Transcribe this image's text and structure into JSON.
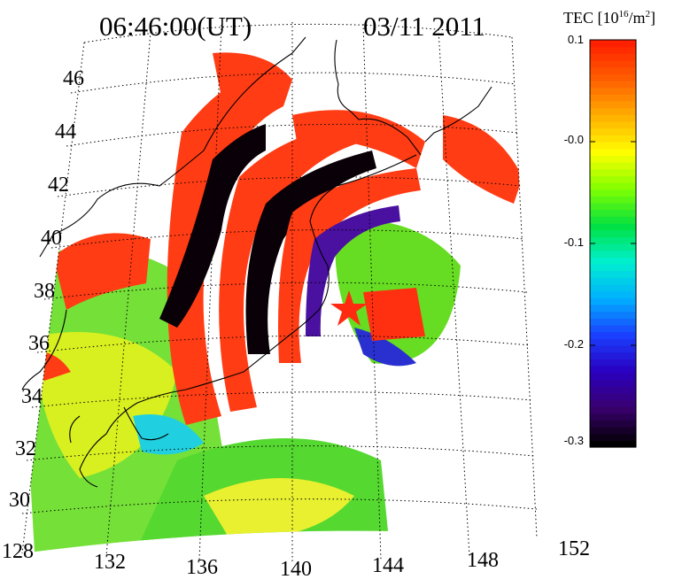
{
  "header": {
    "time": "06:46:00(UT)",
    "date": "03/11 2011"
  },
  "colorbar": {
    "title_prefix": "TEC [10",
    "title_exp1": "16",
    "title_mid": "/m",
    "title_exp2": "2",
    "title_suffix": "]",
    "ticks": [
      "0.1",
      "-0.0",
      "-0.1",
      "-0.2",
      "-0.3"
    ],
    "range": [
      -0.3,
      0.1
    ],
    "colormap": [
      "#000000",
      "#3a0070",
      "#2a00c0",
      "#1a40ff",
      "#00b0ff",
      "#00f0d0",
      "#00e040",
      "#80ff00",
      "#ffff00",
      "#ffb000",
      "#ff6000",
      "#ff2000"
    ]
  },
  "map": {
    "latitude_labels": [
      "46",
      "44",
      "42",
      "40",
      "38",
      "36",
      "34",
      "32",
      "30"
    ],
    "longitude_labels": [
      "128",
      "132",
      "136",
      "140",
      "144",
      "148",
      "152"
    ],
    "epicenter_marker": "red-star",
    "graticule": "dotted"
  }
}
